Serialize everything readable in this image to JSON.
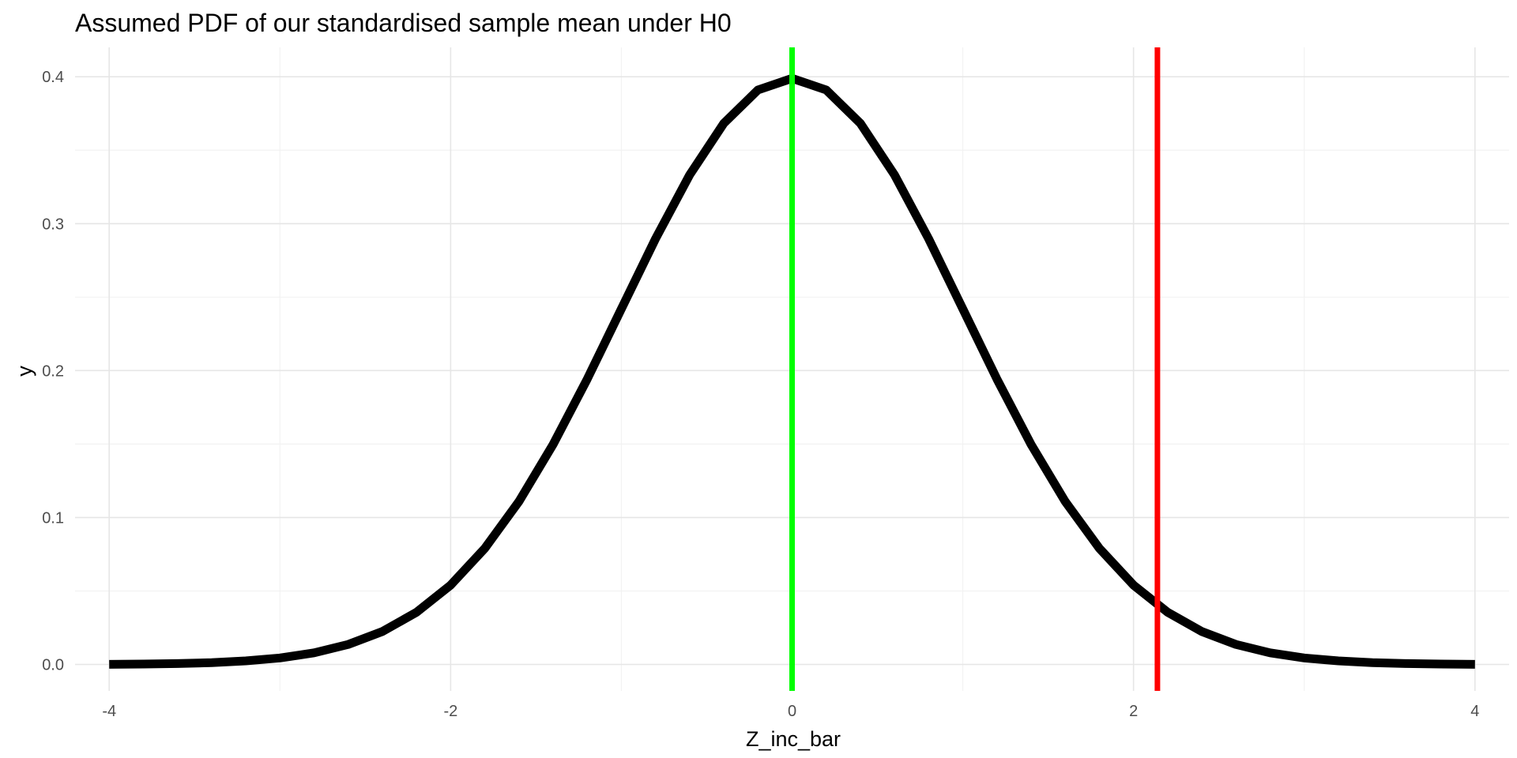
{
  "chart_data": {
    "type": "line",
    "title": "Assumed PDF of our standardised sample mean under H0",
    "xlabel": "Z_inc_bar",
    "ylabel": "y",
    "xlim": [
      -4.2,
      4.2
    ],
    "ylim": [
      -0.018,
      0.42
    ],
    "x_ticks": [
      -4,
      -2,
      0,
      2,
      4
    ],
    "x_tick_labels": [
      "-4",
      "-2",
      "0",
      "2",
      "4"
    ],
    "y_ticks": [
      0.0,
      0.1,
      0.2,
      0.3,
      0.4
    ],
    "y_tick_labels": [
      "0.0",
      "0.1",
      "0.2",
      "0.3",
      "0.4"
    ],
    "grid": true,
    "legend": "none",
    "series": [
      {
        "type": "line",
        "color": "#000000",
        "x": [
          -4.0,
          -3.8,
          -3.6,
          -3.4,
          -3.2,
          -3.0,
          -2.8,
          -2.6,
          -2.4,
          -2.2,
          -2.0,
          -1.8,
          -1.6,
          -1.4,
          -1.2,
          -1.0,
          -0.8,
          -0.6,
          -0.4,
          -0.2,
          0.0,
          0.2,
          0.4,
          0.6,
          0.8,
          1.0,
          1.2,
          1.4,
          1.6,
          1.8,
          2.0,
          2.2,
          2.4,
          2.6,
          2.8,
          3.0,
          3.2,
          3.4,
          3.6,
          3.8,
          4.0
        ],
        "y": [
          0.0001,
          0.0003,
          0.0006,
          0.0012,
          0.0024,
          0.0044,
          0.0079,
          0.0136,
          0.0224,
          0.0355,
          0.054,
          0.079,
          0.1109,
          0.1497,
          0.1942,
          0.242,
          0.2897,
          0.3332,
          0.3683,
          0.391,
          0.3989,
          0.391,
          0.3683,
          0.3332,
          0.2897,
          0.242,
          0.1942,
          0.1497,
          0.1109,
          0.079,
          0.054,
          0.0355,
          0.0224,
          0.0136,
          0.0079,
          0.0044,
          0.0024,
          0.0012,
          0.0006,
          0.0003,
          0.0001
        ]
      }
    ],
    "vlines": [
      {
        "x": 0.0,
        "color": "#00ff00"
      },
      {
        "x": 2.14,
        "color": "#ff0000"
      }
    ]
  }
}
